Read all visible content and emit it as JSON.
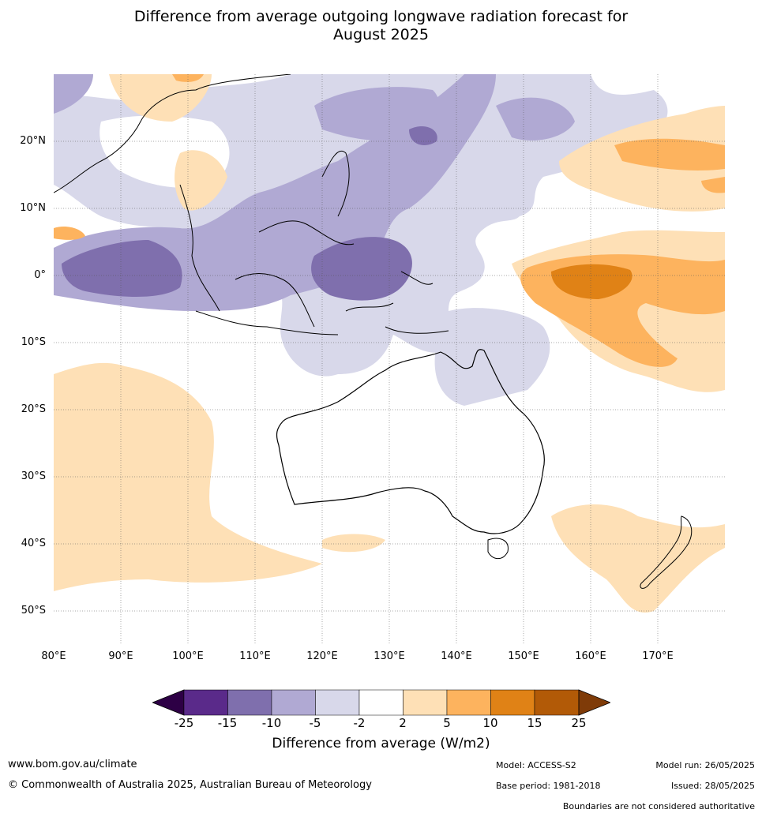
{
  "title": {
    "line1": "Difference from average outgoing longwave radiation forecast for",
    "line2": "August 2025"
  },
  "lat_labels": [
    "20°N",
    "10°N",
    "0°",
    "10°S",
    "20°S",
    "30°S",
    "40°S",
    "50°S"
  ],
  "lon_labels": [
    "80°E",
    "90°E",
    "100°E",
    "110°E",
    "120°E",
    "130°E",
    "140°E",
    "150°E",
    "160°E",
    "170°E"
  ],
  "colorbar": {
    "ticks": [
      "-25",
      "-15",
      "-10",
      "-5",
      "-2",
      "2",
      "5",
      "10",
      "15",
      "25"
    ],
    "colors": [
      "#2d0045",
      "#5a2a8a",
      "#7f6fad",
      "#b0a9d3",
      "#d8d8ea",
      "#ffffff",
      "#fee0b6",
      "#fdb35e",
      "#e08216",
      "#b25a07",
      "#7f3b08"
    ],
    "label": "Difference from average (W/m2)"
  },
  "footer": {
    "website": "www.bom.gov.au/climate",
    "copyright": "© Commonwealth of Australia 2025, Australian Bureau of Meteorology",
    "model": "Model: ACCESS-S2",
    "model_run": "Model run: 26/05/2025",
    "base_period": "Base period: 1981-2018",
    "issued": "Issued: 28/05/2025",
    "disclaimer": "Boundaries are not considered authoritative"
  }
}
